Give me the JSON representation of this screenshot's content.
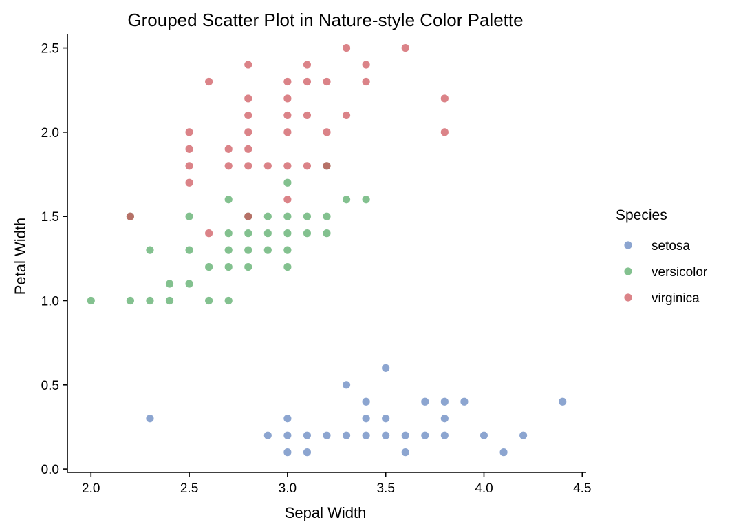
{
  "chart_data": {
    "type": "scatter",
    "title": "Grouped Scatter Plot in Nature-style Color Palette",
    "xlabel": "Sepal Width",
    "ylabel": "Petal Width",
    "xlim": [
      1.88,
      4.52
    ],
    "ylim": [
      -0.02,
      2.58
    ],
    "x_ticks": [
      2.0,
      2.5,
      3.0,
      3.5,
      4.0,
      4.5
    ],
    "x_tick_labels": [
      "2.0",
      "2.5",
      "3.0",
      "3.5",
      "4.0",
      "4.5"
    ],
    "y_ticks": [
      0.0,
      0.5,
      1.0,
      1.5,
      2.0,
      2.5
    ],
    "y_tick_labels": [
      "0.0",
      "0.5",
      "1.0",
      "1.5",
      "2.0",
      "2.5"
    ],
    "grid": false,
    "legend": {
      "title": "Species",
      "placement": "right"
    },
    "series": [
      {
        "name": "setosa",
        "color": "#5b7fbc",
        "points": [
          [
            2.3,
            0.3
          ],
          [
            2.9,
            0.2
          ],
          [
            3.0,
            0.1
          ],
          [
            3.0,
            0.2
          ],
          [
            3.0,
            0.3
          ],
          [
            3.1,
            0.1
          ],
          [
            3.1,
            0.2
          ],
          [
            3.2,
            0.2
          ],
          [
            3.3,
            0.2
          ],
          [
            3.3,
            0.5
          ],
          [
            3.4,
            0.2
          ],
          [
            3.4,
            0.3
          ],
          [
            3.4,
            0.4
          ],
          [
            3.5,
            0.2
          ],
          [
            3.5,
            0.3
          ],
          [
            3.5,
            0.6
          ],
          [
            3.6,
            0.1
          ],
          [
            3.6,
            0.2
          ],
          [
            3.7,
            0.2
          ],
          [
            3.7,
            0.4
          ],
          [
            3.8,
            0.2
          ],
          [
            3.8,
            0.3
          ],
          [
            3.8,
            0.4
          ],
          [
            3.9,
            0.4
          ],
          [
            4.0,
            0.2
          ],
          [
            4.1,
            0.1
          ],
          [
            4.2,
            0.2
          ],
          [
            4.4,
            0.4
          ]
        ]
      },
      {
        "name": "versicolor",
        "color": "#4fa760",
        "points": [
          [
            2.0,
            1.0
          ],
          [
            2.2,
            1.0
          ],
          [
            2.2,
            1.5
          ],
          [
            2.3,
            1.0
          ],
          [
            2.3,
            1.3
          ],
          [
            2.4,
            1.0
          ],
          [
            2.4,
            1.1
          ],
          [
            2.5,
            1.1
          ],
          [
            2.5,
            1.3
          ],
          [
            2.5,
            1.5
          ],
          [
            2.6,
            1.0
          ],
          [
            2.6,
            1.2
          ],
          [
            2.7,
            1.0
          ],
          [
            2.7,
            1.2
          ],
          [
            2.7,
            1.3
          ],
          [
            2.7,
            1.4
          ],
          [
            2.7,
            1.6
          ],
          [
            2.8,
            1.2
          ],
          [
            2.8,
            1.3
          ],
          [
            2.8,
            1.4
          ],
          [
            2.8,
            1.5
          ],
          [
            2.9,
            1.3
          ],
          [
            2.9,
            1.4
          ],
          [
            2.9,
            1.5
          ],
          [
            3.0,
            1.2
          ],
          [
            3.0,
            1.3
          ],
          [
            3.0,
            1.4
          ],
          [
            3.0,
            1.5
          ],
          [
            3.0,
            1.7
          ],
          [
            3.1,
            1.4
          ],
          [
            3.1,
            1.5
          ],
          [
            3.2,
            1.4
          ],
          [
            3.2,
            1.5
          ],
          [
            3.2,
            1.8
          ],
          [
            3.3,
            1.6
          ],
          [
            3.4,
            1.6
          ]
        ]
      },
      {
        "name": "virginica",
        "color": "#cc4f55",
        "points": [
          [
            2.2,
            1.5
          ],
          [
            2.5,
            1.7
          ],
          [
            2.5,
            1.8
          ],
          [
            2.5,
            1.9
          ],
          [
            2.5,
            2.0
          ],
          [
            2.6,
            1.4
          ],
          [
            2.6,
            2.3
          ],
          [
            2.7,
            1.8
          ],
          [
            2.7,
            1.9
          ],
          [
            2.8,
            1.5
          ],
          [
            2.8,
            1.8
          ],
          [
            2.8,
            1.9
          ],
          [
            2.8,
            2.0
          ],
          [
            2.8,
            2.1
          ],
          [
            2.8,
            2.2
          ],
          [
            2.8,
            2.4
          ],
          [
            2.9,
            1.8
          ],
          [
            3.0,
            1.6
          ],
          [
            3.0,
            1.8
          ],
          [
            3.0,
            2.0
          ],
          [
            3.0,
            2.1
          ],
          [
            3.0,
            2.2
          ],
          [
            3.0,
            2.3
          ],
          [
            3.1,
            1.8
          ],
          [
            3.1,
            2.1
          ],
          [
            3.1,
            2.3
          ],
          [
            3.1,
            2.4
          ],
          [
            3.2,
            1.8
          ],
          [
            3.2,
            2.0
          ],
          [
            3.2,
            2.3
          ],
          [
            3.3,
            2.1
          ],
          [
            3.3,
            2.5
          ],
          [
            3.4,
            2.3
          ],
          [
            3.4,
            2.4
          ],
          [
            3.6,
            2.5
          ],
          [
            3.8,
            2.0
          ],
          [
            3.8,
            2.2
          ]
        ]
      }
    ]
  }
}
